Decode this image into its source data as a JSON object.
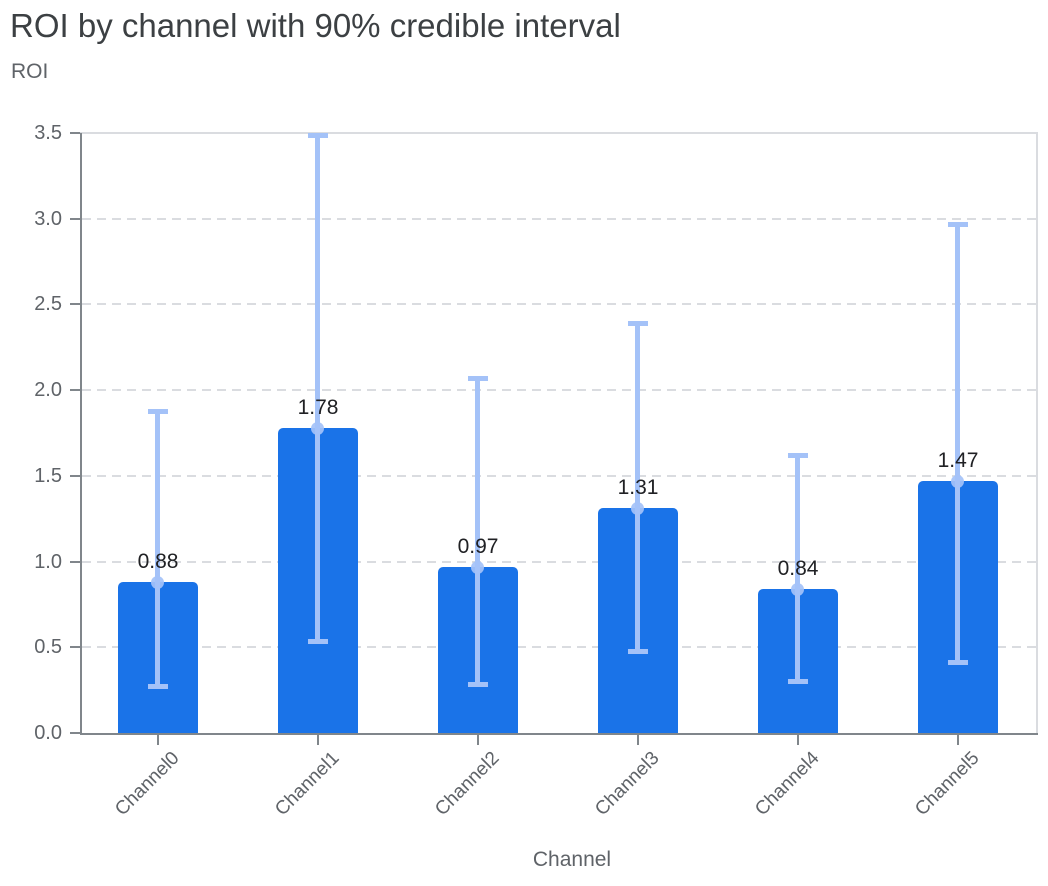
{
  "chart": {
    "title": "ROI by channel with 90% credible interval",
    "y_axis_title": "ROI",
    "x_axis_title": "Channel"
  },
  "chart_data": {
    "type": "bar",
    "title": "ROI by channel with 90% credible interval",
    "xlabel": "Channel",
    "ylabel": "ROI",
    "categories": [
      "Channel0",
      "Channel1",
      "Channel2",
      "Channel3",
      "Channel4",
      "Channel5"
    ],
    "values": [
      0.88,
      1.78,
      0.97,
      1.31,
      0.84,
      1.47
    ],
    "value_labels": [
      "0.88",
      "1.78",
      "0.97",
      "1.31",
      "0.84",
      "1.47"
    ],
    "error_low": [
      0.27,
      0.53,
      0.28,
      0.47,
      0.3,
      0.41
    ],
    "error_high": [
      1.88,
      3.49,
      2.07,
      2.39,
      1.62,
      2.97
    ],
    "interval": "90% credible interval",
    "ylim": [
      0,
      3.5
    ],
    "ytick_labels": [
      "0.0",
      "0.5",
      "1.0",
      "1.5",
      "2.0",
      "2.5",
      "3.0",
      "3.5"
    ],
    "grid": "horizontal dashed",
    "legend": "none",
    "colors": {
      "bar": "#1a73e8",
      "error_bar": "#a4c2f8",
      "grid": "#dadce0",
      "axis": "#80868b",
      "title_text": "#3c4043",
      "tick_text": "#5f6368",
      "value_text": "#202124"
    }
  }
}
